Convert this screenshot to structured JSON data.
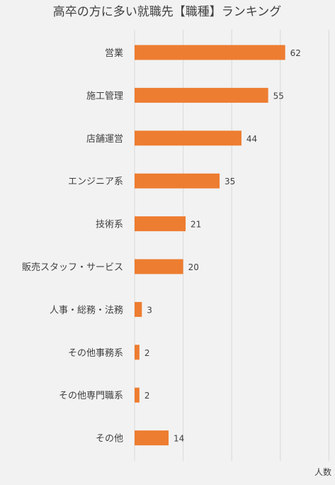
{
  "chart_data": {
    "type": "bar",
    "orientation": "horizontal",
    "title": "高卒の方に多い就職先【職種】ランキング",
    "xlabel": "人数",
    "ylabel": "",
    "categories": [
      "営業",
      "施工管理",
      "店舗運営",
      "エンジニア系",
      "技術系",
      "販売スタッフ・サービス",
      "人事・総務・法務",
      "その他事務系",
      "その他専門職系",
      "その他"
    ],
    "values": [
      62,
      55,
      44,
      35,
      21,
      20,
      3,
      2,
      2,
      14
    ],
    "xlim": [
      0,
      80
    ],
    "grid": true,
    "bar_color": "#ed7d31"
  }
}
